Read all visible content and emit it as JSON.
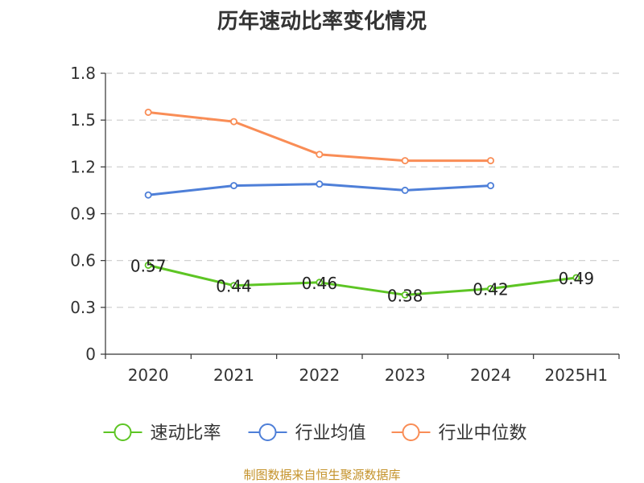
{
  "source_note": "制图数据来自恒生聚源数据库",
  "colors": {
    "speed_ratio": "#5dc524",
    "industry_avg": "#4e7fd8",
    "industry_median": "#f98d56",
    "grid": "#cccccc",
    "axis": "#333333"
  },
  "chart_data": {
    "type": "line",
    "title": "历年速动比率变化情况",
    "categories": [
      "2020",
      "2021",
      "2022",
      "2023",
      "2024",
      "2025H1"
    ],
    "ylim": [
      0,
      1.8
    ],
    "yticks": [
      "0",
      "0.3",
      "0.6",
      "0.9",
      "1.2",
      "1.5",
      "1.8"
    ],
    "grid": "horizontal-dashed",
    "legend_position": "bottom",
    "series": [
      {
        "name": "速动比率",
        "color_key": "speed_ratio",
        "values": [
          0.57,
          0.44,
          0.46,
          0.38,
          0.42,
          0.49
        ],
        "labels": [
          "0.57",
          "0.44",
          "0.46",
          "0.38",
          "0.42",
          "0.49"
        ],
        "show_labels": true
      },
      {
        "name": "行业均值",
        "color_key": "industry_avg",
        "values": [
          1.02,
          1.08,
          1.09,
          1.05,
          1.08,
          null
        ],
        "show_labels": false
      },
      {
        "name": "行业中位数",
        "color_key": "industry_median",
        "values": [
          1.55,
          1.49,
          1.28,
          1.24,
          1.24,
          null
        ],
        "show_labels": false
      }
    ]
  }
}
